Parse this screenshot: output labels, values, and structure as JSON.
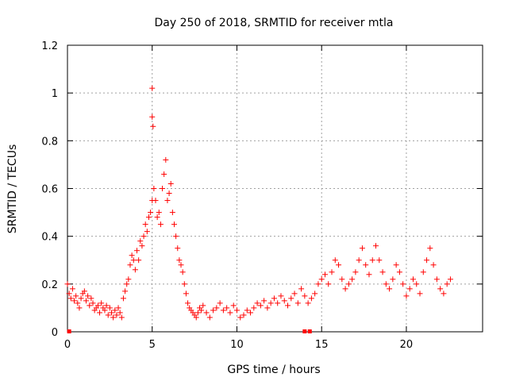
{
  "chart_data": {
    "type": "scatter",
    "title": "Day 250 of 2018, SRMTID for receiver mtla",
    "xlabel": "GPS time / hours",
    "ylabel": "SRMTID / TECUs",
    "xlim": [
      0,
      24.5
    ],
    "ylim": [
      0,
      1.2
    ],
    "x_ticks": [
      0,
      5,
      10,
      15,
      20
    ],
    "y_ticks": [
      0,
      0.2,
      0.4,
      0.6,
      0.8,
      1,
      1.2
    ],
    "x_tick_labels": [
      "0",
      "5",
      "10",
      "15",
      "20"
    ],
    "y_tick_labels": [
      "0",
      "0.2",
      "0.4",
      "0.6",
      "0.8",
      "1",
      "1.2"
    ],
    "grid": true,
    "marker": "+",
    "marker_color": "#ff0000",
    "series": [
      {
        "name": "SRMTID",
        "x": [
          0.0,
          0.1,
          0.2,
          0.3,
          0.4,
          0.5,
          0.6,
          0.7,
          0.8,
          0.9,
          1.0,
          1.1,
          1.2,
          1.3,
          1.4,
          1.5,
          1.6,
          1.7,
          1.8,
          1.9,
          2.0,
          2.1,
          2.2,
          2.3,
          2.4,
          2.5,
          2.6,
          2.7,
          2.8,
          2.9,
          3.0,
          3.1,
          3.2,
          3.3,
          3.4,
          3.5,
          3.6,
          3.7,
          3.8,
          3.9,
          4.0,
          4.1,
          4.2,
          4.3,
          4.4,
          4.5,
          4.6,
          4.7,
          4.8,
          4.9,
          5.0,
          5.0,
          5.0,
          5.05,
          5.1,
          5.2,
          5.3,
          5.4,
          5.5,
          5.6,
          5.7,
          5.8,
          5.9,
          6.0,
          6.1,
          6.2,
          6.3,
          6.4,
          6.5,
          6.6,
          6.7,
          6.8,
          6.9,
          7.0,
          7.1,
          7.2,
          7.3,
          7.4,
          7.5,
          7.6,
          7.7,
          7.8,
          7.9,
          8.0,
          8.2,
          8.4,
          8.6,
          8.8,
          9.0,
          9.2,
          9.4,
          9.6,
          9.8,
          10.0,
          10.2,
          10.4,
          10.6,
          10.8,
          11.0,
          11.2,
          11.4,
          11.6,
          11.8,
          12.0,
          12.2,
          12.4,
          12.6,
          12.8,
          13.0,
          13.2,
          13.4,
          13.6,
          13.8,
          14.0,
          14.2,
          14.4,
          14.6,
          14.8,
          15.0,
          15.2,
          15.4,
          15.6,
          15.8,
          16.0,
          16.2,
          16.4,
          16.6,
          16.8,
          17.0,
          17.2,
          17.4,
          17.6,
          17.8,
          18.0,
          18.2,
          18.4,
          18.6,
          18.8,
          19.0,
          19.2,
          19.4,
          19.6,
          19.8,
          20.0,
          20.2,
          20.4,
          20.6,
          20.8,
          21.0,
          21.2,
          21.4,
          21.6,
          21.8,
          22.0,
          22.2,
          22.4,
          22.6
        ],
        "y": [
          0.2,
          0.16,
          0.14,
          0.18,
          0.13,
          0.15,
          0.12,
          0.1,
          0.14,
          0.16,
          0.17,
          0.13,
          0.15,
          0.11,
          0.14,
          0.12,
          0.09,
          0.1,
          0.11,
          0.08,
          0.12,
          0.1,
          0.09,
          0.11,
          0.07,
          0.1,
          0.08,
          0.06,
          0.09,
          0.07,
          0.1,
          0.08,
          0.06,
          0.14,
          0.17,
          0.2,
          0.22,
          0.28,
          0.32,
          0.3,
          0.26,
          0.34,
          0.3,
          0.38,
          0.36,
          0.4,
          0.45,
          0.42,
          0.48,
          0.5,
          0.55,
          0.9,
          1.02,
          0.86,
          0.6,
          0.55,
          0.48,
          0.5,
          0.45,
          0.6,
          0.66,
          0.72,
          0.55,
          0.58,
          0.62,
          0.5,
          0.45,
          0.4,
          0.35,
          0.3,
          0.28,
          0.25,
          0.2,
          0.16,
          0.12,
          0.1,
          0.09,
          0.08,
          0.07,
          0.06,
          0.08,
          0.1,
          0.09,
          0.11,
          0.08,
          0.06,
          0.09,
          0.1,
          0.12,
          0.09,
          0.1,
          0.08,
          0.11,
          0.09,
          0.06,
          0.07,
          0.09,
          0.08,
          0.1,
          0.12,
          0.11,
          0.13,
          0.1,
          0.12,
          0.14,
          0.12,
          0.15,
          0.13,
          0.11,
          0.14,
          0.16,
          0.12,
          0.18,
          0.15,
          0.12,
          0.14,
          0.16,
          0.2,
          0.22,
          0.24,
          0.2,
          0.25,
          0.3,
          0.28,
          0.22,
          0.18,
          0.2,
          0.22,
          0.25,
          0.3,
          0.35,
          0.28,
          0.24,
          0.3,
          0.36,
          0.3,
          0.25,
          0.2,
          0.18,
          0.22,
          0.28,
          0.25,
          0.2,
          0.15,
          0.18,
          0.22,
          0.2,
          0.16,
          0.25,
          0.3,
          0.35,
          0.28,
          0.22,
          0.18,
          0.16,
          0.2,
          0.22
        ]
      }
    ],
    "zero_markers_x": [
      0.1,
      14.0,
      14.3
    ]
  }
}
